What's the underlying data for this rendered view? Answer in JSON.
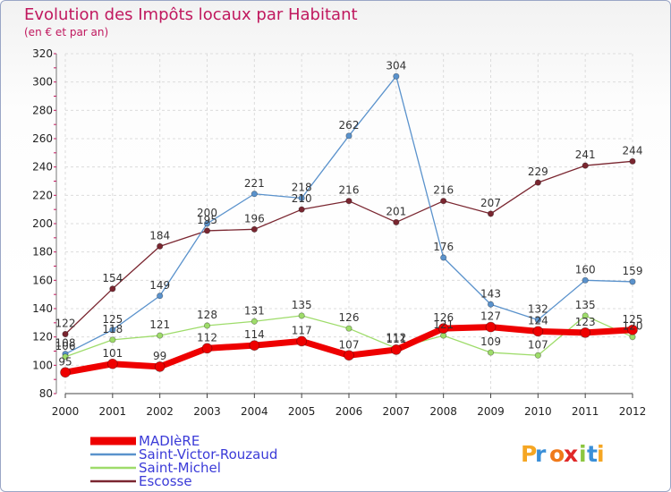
{
  "chart_data": {
    "type": "line",
    "title": "Evolution des Impôts locaux par Habitant",
    "subtitle": "(en € et par an)",
    "categories": [
      "2000",
      "2001",
      "2002",
      "2003",
      "2004",
      "2005",
      "2006",
      "2007",
      "2008",
      "2009",
      "2010",
      "2011",
      "2012"
    ],
    "ylim": [
      80,
      320
    ],
    "yticks": [
      80,
      100,
      120,
      140,
      160,
      180,
      200,
      220,
      240,
      260,
      280,
      300,
      320
    ],
    "grid": true,
    "legend_position": "bottom-left",
    "series": [
      {
        "name": "Escosse",
        "color": "#7a2630",
        "values": [
          122,
          154,
          184,
          195,
          196,
          210,
          216,
          201,
          216,
          207,
          229,
          241,
          244
        ],
        "labels": [
          "122",
          "154",
          "184",
          "195",
          "196",
          "210",
          "216",
          "201",
          "216",
          "207",
          "229",
          "241",
          "244"
        ]
      },
      {
        "name": "Saint-Victor-Rouzaud",
        "color": "#5a92cc",
        "values": [
          108,
          125,
          149,
          200,
          221,
          218,
          262,
          304,
          176,
          143,
          132,
          160,
          159
        ],
        "labels": [
          "108",
          "125",
          "149",
          "200",
          "221",
          "218",
          "262",
          "304",
          "176",
          "143",
          "132",
          "160",
          "159"
        ]
      },
      {
        "name": "Saint-Michel",
        "color": "#9edc6a",
        "values": [
          106,
          118,
          121,
          128,
          131,
          135,
          126,
          112,
          121,
          109,
          107,
          135,
          120
        ],
        "labels": [
          "106",
          "118",
          "121",
          "128",
          "131",
          "135",
          "126",
          "112",
          "121",
          "109",
          "107",
          "135",
          "120"
        ]
      },
      {
        "name": "MADIèRE",
        "color": "#ee0000",
        "values": [
          95,
          101,
          99,
          112,
          114,
          117,
          107,
          111,
          126,
          127,
          124,
          123,
          125
        ],
        "labels": [
          "95",
          "101",
          "99",
          "112",
          "114",
          "117",
          "107",
          "111",
          "126",
          "127",
          "124",
          "123",
          "125"
        ]
      }
    ],
    "legend": [
      "MADIèRE",
      "Saint-Victor-Rouzaud",
      "Saint-Michel",
      "Escosse"
    ]
  },
  "brand": {
    "text": "Proxiti",
    "letters": [
      "P",
      "r",
      "o",
      "x",
      "i",
      "t",
      "i"
    ]
  }
}
